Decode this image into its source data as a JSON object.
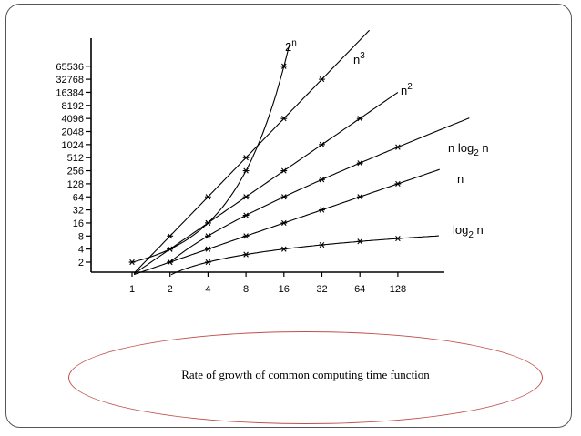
{
  "caption": "Rate of growth of common computing time function",
  "colors": {
    "ellipse": "#c0504d",
    "frame": "#555555",
    "ink": "#000000"
  },
  "chart_data": {
    "type": "line",
    "title": "",
    "xlabel": "",
    "ylabel": "",
    "x_scale": "log2",
    "y_scale": "log2",
    "x_ticks": [
      1,
      2,
      4,
      8,
      16,
      32,
      64,
      128
    ],
    "x_tick_labels": [
      "1",
      "2",
      "4",
      "8",
      "16",
      "32",
      "64",
      "128"
    ],
    "y_ticks": [
      2,
      4,
      8,
      16,
      32,
      64,
      128,
      256,
      512,
      1024,
      2048,
      4096,
      8192,
      16384,
      32768,
      65536
    ],
    "y_tick_labels": [
      "2",
      "4",
      "8",
      "16",
      "32",
      "64",
      "128",
      "256",
      "512",
      "1024",
      "2048",
      "4096",
      "8192",
      "16384",
      "32768",
      "65536"
    ],
    "grid": false,
    "series": [
      {
        "name": "log₂ n",
        "label": "log2 n",
        "x": [
          1,
          2,
          4,
          8,
          16,
          32,
          64,
          128
        ],
        "y": [
          0,
          1,
          2,
          3,
          4,
          5,
          6,
          7
        ]
      },
      {
        "name": "n",
        "label": "n",
        "x": [
          1,
          2,
          4,
          8,
          16,
          32,
          64,
          128
        ],
        "y": [
          1,
          2,
          4,
          8,
          16,
          32,
          64,
          128
        ]
      },
      {
        "name": "n log₂ n",
        "label": "n log2 n",
        "x": [
          2,
          4,
          8,
          16,
          32,
          64,
          128
        ],
        "y": [
          2,
          8,
          24,
          64,
          160,
          384,
          896
        ]
      },
      {
        "name": "n²",
        "label": "n^2",
        "x": [
          1,
          2,
          4,
          8,
          16,
          32,
          64
        ],
        "y": [
          1,
          4,
          16,
          64,
          256,
          1024,
          4096
        ]
      },
      {
        "name": "n³",
        "label": "n^3",
        "x": [
          1,
          2,
          4,
          8,
          16,
          32
        ],
        "y": [
          1,
          8,
          64,
          512,
          4096,
          32768
        ]
      },
      {
        "name": "2ⁿ",
        "label": "2^n",
        "x": [
          1,
          2,
          4,
          8,
          16
        ],
        "y": [
          2,
          4,
          16,
          256,
          65536
        ]
      }
    ]
  }
}
